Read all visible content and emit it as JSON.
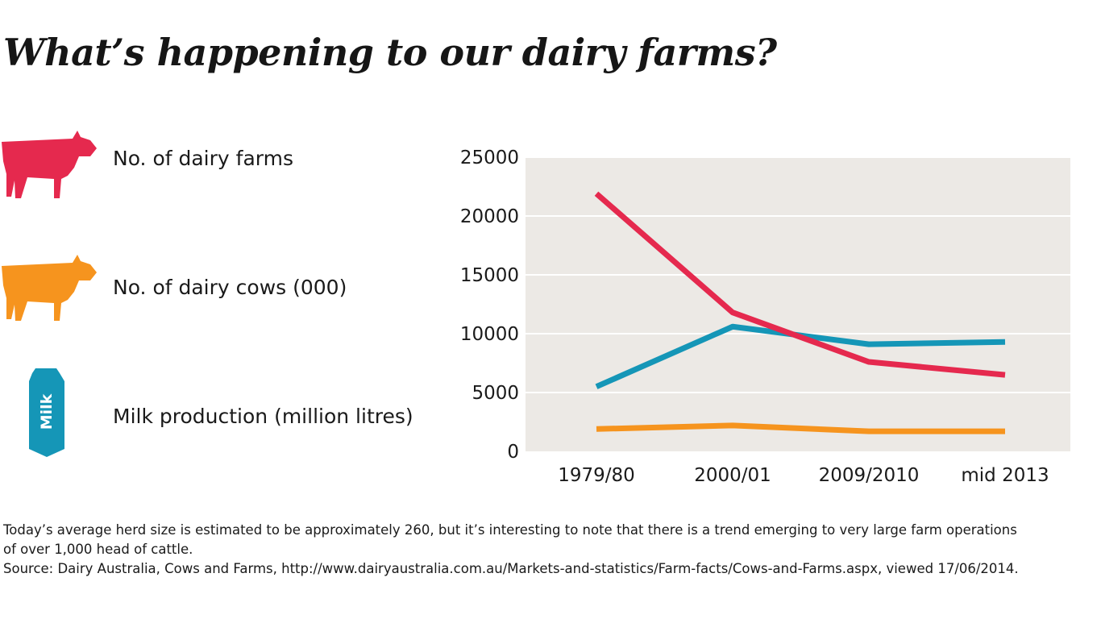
{
  "title": "What’s happening to our dairy farms?",
  "legend": [
    {
      "label": "No. of dairy farms",
      "icon": "cow-icon",
      "color": "#e5294e"
    },
    {
      "label": "No. of dairy cows (000)",
      "icon": "cow-icon",
      "color": "#f6941e"
    },
    {
      "label": "Milk production (million litres)",
      "icon": "milk-carton-icon",
      "color": "#1596b7",
      "icon_text": "Milk"
    }
  ],
  "chart_data": {
    "type": "line",
    "categories": [
      "1979/80",
      "2000/01",
      "2009/2010",
      "mid 2013"
    ],
    "y_ticks": [
      "0",
      "5000",
      "10000",
      "15000",
      "20000",
      "25000"
    ],
    "ylim": [
      0,
      25000
    ],
    "grid": true,
    "plot_background": "#ece9e5",
    "series": [
      {
        "name": "No. of dairy farms",
        "color": "#e5294e",
        "values": [
          21900,
          11800,
          7600,
          6500
        ]
      },
      {
        "name": "No. of dairy cows (000)",
        "color": "#f6941e",
        "values": [
          1900,
          2200,
          1700,
          1700
        ]
      },
      {
        "name": "Milk production (million litres)",
        "color": "#1596b7",
        "values": [
          5500,
          10600,
          9100,
          9300
        ]
      }
    ]
  },
  "notes": {
    "line1": "Today’s average herd size is estimated to be approximately 260, but it’s interesting to note that there is a trend emerging to very large farm operations",
    "line2": "of over 1,000 head of cattle.",
    "source": "Source: Dairy Australia, Cows and Farms, http://www.dairyaustralia.com.au/Markets-and-statistics/Farm-facts/Cows-and-Farms.aspx, viewed 17/06/2014."
  }
}
